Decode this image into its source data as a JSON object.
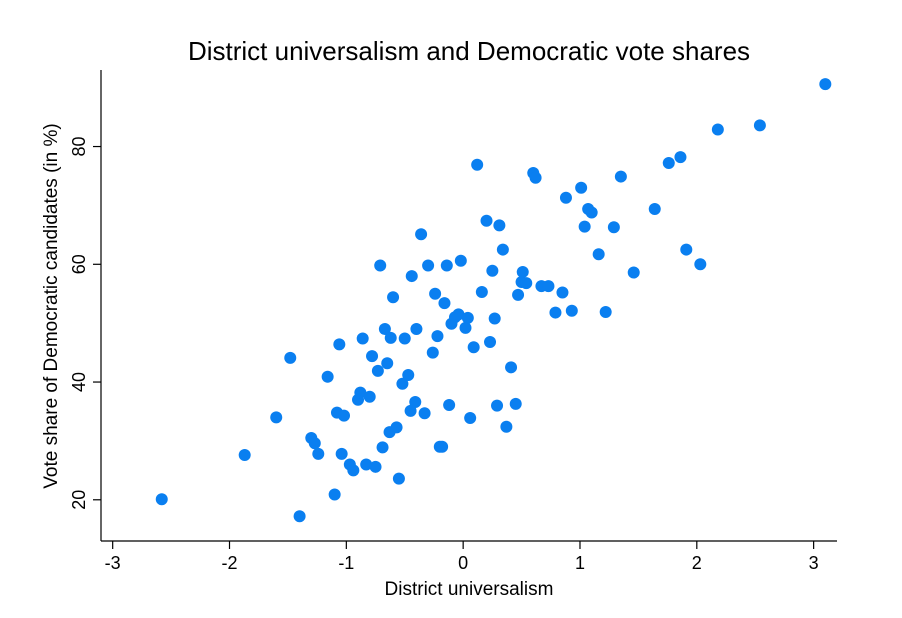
{
  "chart_data": {
    "type": "scatter",
    "title": "District universalism and Democratic vote shares",
    "xlabel": "District universalism",
    "ylabel": "Vote share of Democratic candidates (in %)",
    "xlim": [
      -3.1,
      3.2
    ],
    "ylim": [
      13,
      93
    ],
    "xticks": [
      -3,
      -2,
      -1,
      0,
      1,
      2,
      3
    ],
    "yticks": [
      20,
      40,
      60,
      80
    ],
    "grid": false,
    "legend": "none",
    "marker_color": "#0a7ff0",
    "points": [
      [
        -2.58,
        20.1
      ],
      [
        -1.87,
        27.6
      ],
      [
        -1.6,
        34.0
      ],
      [
        -1.48,
        44.1
      ],
      [
        -1.4,
        17.2
      ],
      [
        -1.3,
        30.5
      ],
      [
        -1.27,
        29.6
      ],
      [
        -1.24,
        27.8
      ],
      [
        -1.16,
        40.9
      ],
      [
        -1.1,
        20.9
      ],
      [
        -1.08,
        34.8
      ],
      [
        -1.06,
        46.4
      ],
      [
        -1.04,
        27.8
      ],
      [
        -1.02,
        34.3
      ],
      [
        -0.97,
        26.0
      ],
      [
        -0.94,
        25.0
      ],
      [
        -0.9,
        37.0
      ],
      [
        -0.88,
        38.2
      ],
      [
        -0.86,
        47.4
      ],
      [
        -0.83,
        26.0
      ],
      [
        -0.8,
        37.5
      ],
      [
        -0.78,
        44.4
      ],
      [
        -0.75,
        25.6
      ],
      [
        -0.73,
        41.9
      ],
      [
        -0.71,
        59.8
      ],
      [
        -0.69,
        28.9
      ],
      [
        -0.67,
        49.0
      ],
      [
        -0.65,
        43.2
      ],
      [
        -0.63,
        31.5
      ],
      [
        -0.62,
        47.5
      ],
      [
        -0.6,
        54.4
      ],
      [
        -0.57,
        32.3
      ],
      [
        -0.55,
        23.6
      ],
      [
        -0.52,
        39.7
      ],
      [
        -0.5,
        47.4
      ],
      [
        -0.47,
        41.2
      ],
      [
        -0.45,
        35.1
      ],
      [
        -0.44,
        58.0
      ],
      [
        -0.41,
        36.6
      ],
      [
        -0.4,
        49.0
      ],
      [
        -0.36,
        65.1
      ],
      [
        -0.33,
        34.7
      ],
      [
        -0.3,
        59.8
      ],
      [
        -0.26,
        45.0
      ],
      [
        -0.24,
        55.0
      ],
      [
        -0.22,
        47.8
      ],
      [
        -0.2,
        29.0
      ],
      [
        -0.18,
        29.0
      ],
      [
        -0.16,
        53.4
      ],
      [
        -0.14,
        59.8
      ],
      [
        -0.12,
        36.1
      ],
      [
        -0.1,
        49.9
      ],
      [
        -0.07,
        51.0
      ],
      [
        -0.04,
        51.5
      ],
      [
        -0.02,
        60.6
      ],
      [
        0.02,
        49.2
      ],
      [
        0.04,
        50.9
      ],
      [
        0.06,
        33.9
      ],
      [
        0.09,
        45.9
      ],
      [
        0.12,
        76.9
      ],
      [
        0.16,
        55.3
      ],
      [
        0.2,
        67.4
      ],
      [
        0.23,
        46.8
      ],
      [
        0.25,
        58.9
      ],
      [
        0.27,
        50.8
      ],
      [
        0.29,
        36.0
      ],
      [
        0.31,
        66.6
      ],
      [
        0.34,
        62.5
      ],
      [
        0.37,
        32.4
      ],
      [
        0.41,
        42.5
      ],
      [
        0.45,
        36.3
      ],
      [
        0.47,
        54.8
      ],
      [
        0.5,
        57.0
      ],
      [
        0.51,
        58.7
      ],
      [
        0.54,
        56.8
      ],
      [
        0.6,
        75.5
      ],
      [
        0.62,
        74.7
      ],
      [
        0.67,
        56.3
      ],
      [
        0.73,
        56.3
      ],
      [
        0.79,
        51.8
      ],
      [
        0.85,
        55.2
      ],
      [
        0.88,
        71.3
      ],
      [
        0.93,
        52.1
      ],
      [
        1.01,
        73.0
      ],
      [
        1.04,
        66.4
      ],
      [
        1.07,
        69.4
      ],
      [
        1.1,
        68.8
      ],
      [
        1.16,
        61.7
      ],
      [
        1.22,
        51.9
      ],
      [
        1.29,
        66.3
      ],
      [
        1.35,
        74.9
      ],
      [
        1.46,
        58.6
      ],
      [
        1.64,
        69.4
      ],
      [
        1.76,
        77.2
      ],
      [
        1.86,
        78.2
      ],
      [
        1.91,
        62.5
      ],
      [
        2.03,
        60.0
      ],
      [
        2.18,
        82.9
      ],
      [
        2.54,
        83.6
      ],
      [
        3.1,
        90.6
      ]
    ]
  }
}
